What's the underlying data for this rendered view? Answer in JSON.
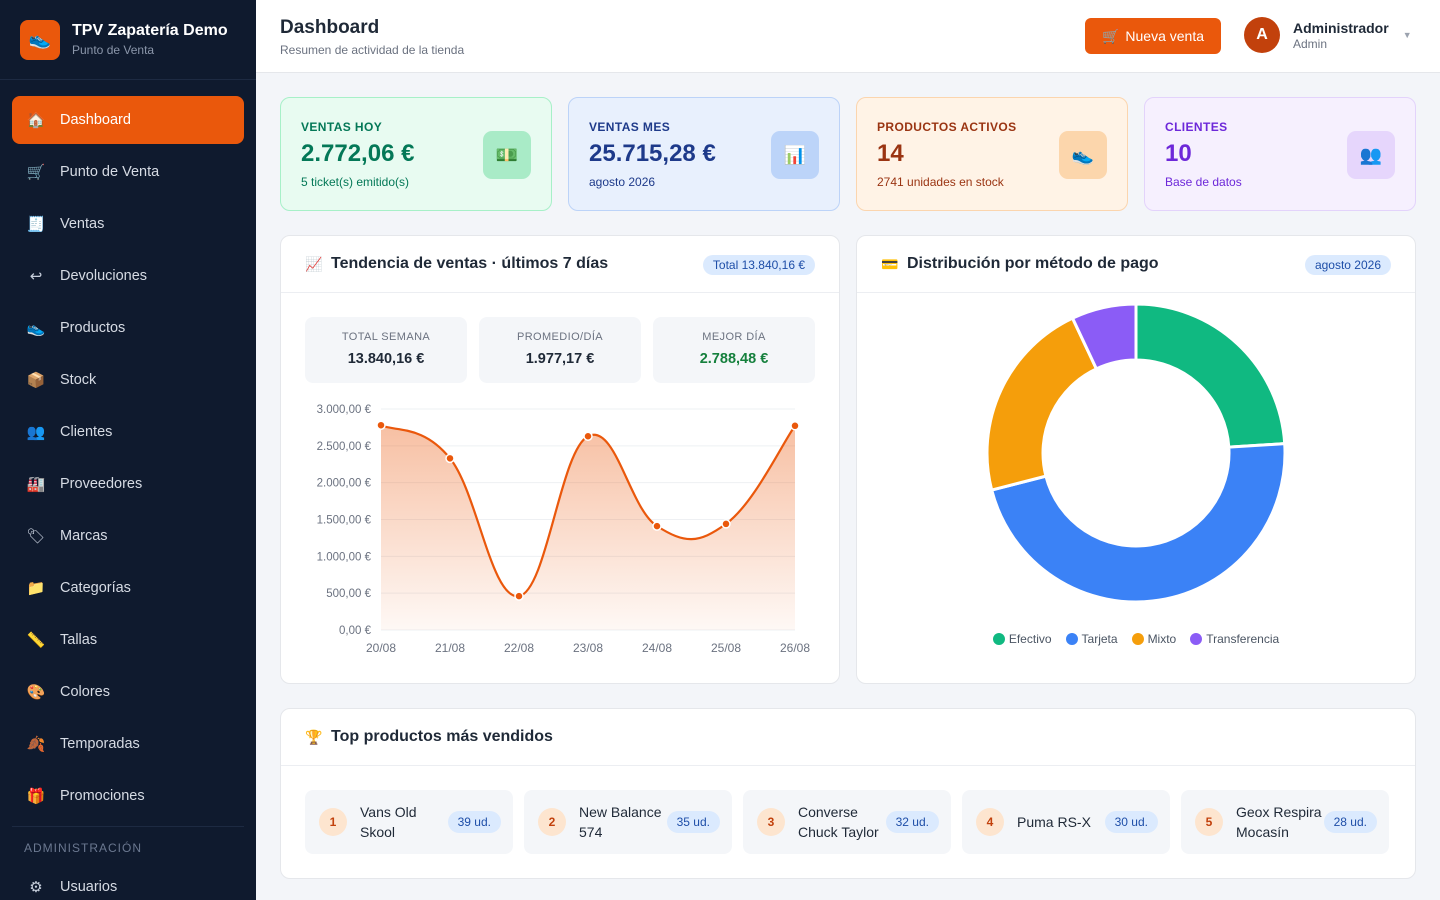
{
  "brand": {
    "title": "TPV Zapatería Demo",
    "subtitle": "Punto de Venta"
  },
  "nav": {
    "items": [
      {
        "label": "Dashboard",
        "icon": "home-icon",
        "glyph": "🏠",
        "active": true
      },
      {
        "label": "Punto de Venta",
        "icon": "cart-icon",
        "glyph": "🛒"
      },
      {
        "label": "Ventas",
        "icon": "receipt-icon",
        "glyph": "🧾"
      },
      {
        "label": "Devoluciones",
        "icon": "return-icon",
        "glyph": "↩"
      },
      {
        "label": "Productos",
        "icon": "shoe-icon",
        "glyph": "👟"
      },
      {
        "label": "Stock",
        "icon": "box-icon",
        "glyph": "📦"
      },
      {
        "label": "Clientes",
        "icon": "users-icon",
        "glyph": "👥"
      },
      {
        "label": "Proveedores",
        "icon": "factory-icon",
        "glyph": "🏭"
      },
      {
        "label": "Marcas",
        "icon": "tag-icon",
        "glyph": "🏷"
      },
      {
        "label": "Categorías",
        "icon": "folder-icon",
        "glyph": "📁"
      },
      {
        "label": "Tallas",
        "icon": "ruler-icon",
        "glyph": "📏"
      },
      {
        "label": "Colores",
        "icon": "palette-icon",
        "glyph": "🎨"
      },
      {
        "label": "Temporadas",
        "icon": "leaf-icon",
        "glyph": "🍂"
      },
      {
        "label": "Promociones",
        "icon": "gift-icon",
        "glyph": "🎁"
      }
    ],
    "admin_section": "ADMINISTRACIÓN",
    "admin_items": [
      {
        "label": "Usuarios",
        "icon": "gear-icon",
        "glyph": "⚙"
      }
    ]
  },
  "header": {
    "title": "Dashboard",
    "subtitle": "Resumen de actividad de la tienda",
    "new_sale": "Nueva venta",
    "user_name": "Administrador",
    "user_role": "Admin",
    "avatar_letter": "A"
  },
  "stats": [
    {
      "label": "VENTAS HOY",
      "value": "2.772,06 €",
      "foot": "5 ticket(s) emitido(s)",
      "icon": "cash-icon",
      "glyph": "💵",
      "accent": "#047857",
      "bg": "#e8fbf1",
      "border": "#a7f0c8",
      "iconbg": "#a9ebc7"
    },
    {
      "label": "VENTAS MES",
      "value": "25.715,28 €",
      "foot": "agosto 2026",
      "icon": "bar-chart-icon",
      "glyph": "📊",
      "accent": "#1e3a8a",
      "bg": "#e8f0fd",
      "border": "#bcd3f8",
      "iconbg": "#bcd4f9"
    },
    {
      "label": "PRODUCTOS ACTIVOS",
      "value": "14",
      "foot": "2741 unidades en stock",
      "icon": "shoe-icon",
      "glyph": "👟",
      "accent": "#9a3412",
      "bg": "#fff3e6",
      "border": "#fbd5ae",
      "iconbg": "#fcd6ac"
    },
    {
      "label": "CLIENTES",
      "value": "10",
      "foot": "Base de datos",
      "icon": "users-icon",
      "glyph": "👥",
      "accent": "#6d28d9",
      "bg": "#f6f0fe",
      "border": "#e3d3fb",
      "iconbg": "#e6d6fc"
    }
  ],
  "trend": {
    "title": "Tendencia de ventas · últimos 7 días",
    "pill": "Total 13.840,16 €",
    "summary": [
      {
        "label": "TOTAL SEMANA",
        "value": "13.840,16 €",
        "color": "#1f2937"
      },
      {
        "label": "PROMEDIO/DÍA",
        "value": "1.977,17 €",
        "color": "#1f2937"
      },
      {
        "label": "MEJOR DÍA",
        "value": "2.788,48 €",
        "color": "#15803d"
      }
    ]
  },
  "payment": {
    "title": "Distribución por método de pago",
    "pill": "agosto 2026"
  },
  "chart_data": [
    {
      "type": "area",
      "categories": [
        "20/08",
        "21/08",
        "22/08",
        "23/08",
        "24/08",
        "25/08",
        "26/08"
      ],
      "values": [
        2780,
        2330,
        460,
        2630,
        1410,
        1440,
        2772
      ],
      "ylim": [
        0,
        3000
      ],
      "yticks": [
        "3.000,00 €",
        "2.500,00 €",
        "2.000,00 €",
        "1.500,00 €",
        "1.000,00 €",
        "500,00 €",
        "0,00 €"
      ],
      "color": "#ea580c",
      "grid": true
    },
    {
      "type": "pie",
      "labels": [
        "Efectivo",
        "Tarjeta",
        "Mixto",
        "Transferencia"
      ],
      "values": [
        24,
        47,
        22,
        7
      ],
      "colors": [
        "#10b981",
        "#3b82f6",
        "#f59e0b",
        "#8b5cf6"
      ],
      "legend": "bottom"
    }
  ],
  "top_products": {
    "title": "Top productos más vendidos",
    "items": [
      {
        "rank": "1",
        "name": "Vans Old Skool",
        "units": "39 ud."
      },
      {
        "rank": "2",
        "name": "New Balance 574",
        "units": "35 ud."
      },
      {
        "rank": "3",
        "name": "Converse Chuck Taylor",
        "units": "32 ud."
      },
      {
        "rank": "4",
        "name": "Puma RS-X",
        "units": "30 ud."
      },
      {
        "rank": "5",
        "name": "Geox Respira Mocasín",
        "units": "28 ud."
      }
    ]
  }
}
